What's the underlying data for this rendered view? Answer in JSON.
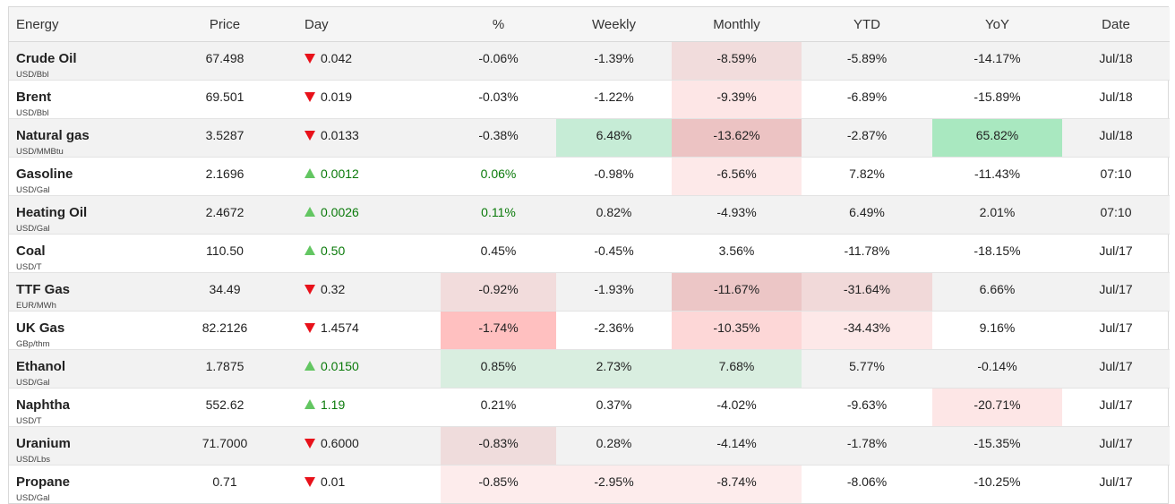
{
  "headers": {
    "energy": "Energy",
    "price": "Price",
    "day": "Day",
    "pct": "%",
    "weekly": "Weekly",
    "monthly": "Monthly",
    "ytd": "YTD",
    "yoy": "YoY",
    "date": "Date"
  },
  "colors": {
    "up_arrow": "#63c662",
    "down_arrow": "#e8111a",
    "positive_text": "#0a7a0a"
  },
  "rows": [
    {
      "name": "Crude Oil",
      "unit": "USD/Bbl",
      "price": "67.498",
      "dir": "down",
      "day": "0.042",
      "pct": "-0.06%",
      "weekly": "-1.39%",
      "monthly": "-8.59%",
      "ytd": "-5.89%",
      "yoy": "-14.17%",
      "date": "Jul/18",
      "bg": {
        "monthly": "#f1dcdc"
      }
    },
    {
      "name": "Brent",
      "unit": "USD/Bbl",
      "price": "69.501",
      "dir": "down",
      "day": "0.019",
      "pct": "-0.03%",
      "weekly": "-1.22%",
      "monthly": "-9.39%",
      "ytd": "-6.89%",
      "yoy": "-15.89%",
      "date": "Jul/18",
      "bg": {
        "monthly": "#fde6e6"
      }
    },
    {
      "name": "Natural gas",
      "unit": "USD/MMBtu",
      "price": "3.5287",
      "dir": "down",
      "day": "0.0133",
      "pct": "-0.38%",
      "weekly": "6.48%",
      "monthly": "-13.62%",
      "ytd": "-2.87%",
      "yoy": "65.82%",
      "date": "Jul/18",
      "bg": {
        "weekly": "#c6ecd6",
        "monthly": "#ecc3c3",
        "yoy": "#a9e8c0"
      }
    },
    {
      "name": "Gasoline",
      "unit": "USD/Gal",
      "price": "2.1696",
      "dir": "up",
      "day": "0.0012",
      "pct": "0.06%",
      "weekly": "-0.98%",
      "monthly": "-6.56%",
      "ytd": "7.82%",
      "yoy": "-11.43%",
      "date": "07:10",
      "bg": {
        "monthly": "#fde9e9"
      },
      "pct_pos": true
    },
    {
      "name": "Heating Oil",
      "unit": "USD/Gal",
      "price": "2.4672",
      "dir": "up",
      "day": "0.0026",
      "pct": "0.11%",
      "weekly": "0.82%",
      "monthly": "-4.93%",
      "ytd": "6.49%",
      "yoy": "2.01%",
      "date": "07:10",
      "bg": {},
      "pct_pos": true
    },
    {
      "name": "Coal",
      "unit": "USD/T",
      "price": "110.50",
      "dir": "up",
      "day": "0.50",
      "pct": "0.45%",
      "weekly": "-0.45%",
      "monthly": "3.56%",
      "ytd": "-11.78%",
      "yoy": "-18.15%",
      "date": "Jul/17",
      "bg": {}
    },
    {
      "name": "TTF Gas",
      "unit": "EUR/MWh",
      "price": "34.49",
      "dir": "down",
      "day": "0.32",
      "pct": "-0.92%",
      "weekly": "-1.93%",
      "monthly": "-11.67%",
      "ytd": "-31.64%",
      "yoy": "6.66%",
      "date": "Jul/17",
      "bg": {
        "pct": "#f2dcdc",
        "monthly": "#ecc6c6",
        "ytd": "#f1d9d9"
      }
    },
    {
      "name": "UK Gas",
      "unit": "GBp/thm",
      "price": "82.2126",
      "dir": "down",
      "day": "1.4574",
      "pct": "-1.74%",
      "weekly": "-2.36%",
      "monthly": "-10.35%",
      "ytd": "-34.43%",
      "yoy": "9.16%",
      "date": "Jul/17",
      "bg": {
        "pct": "#ffc0c0",
        "monthly": "#fdd7d7",
        "ytd": "#fde8e8"
      }
    },
    {
      "name": "Ethanol",
      "unit": "USD/Gal",
      "price": "1.7875",
      "dir": "up",
      "day": "0.0150",
      "pct": "0.85%",
      "weekly": "2.73%",
      "monthly": "7.68%",
      "ytd": "5.77%",
      "yoy": "-0.14%",
      "date": "Jul/17",
      "bg": {
        "pct": "#d9eee0",
        "weekly": "#d9eee0",
        "monthly": "#d9eee0"
      }
    },
    {
      "name": "Naphtha",
      "unit": "USD/T",
      "price": "552.62",
      "dir": "up",
      "day": "1.19",
      "pct": "0.21%",
      "weekly": "0.37%",
      "monthly": "-4.02%",
      "ytd": "-9.63%",
      "yoy": "-20.71%",
      "date": "Jul/17",
      "bg": {
        "yoy": "#fde6e6"
      }
    },
    {
      "name": "Uranium",
      "unit": "USD/Lbs",
      "price": "71.7000",
      "dir": "down",
      "day": "0.6000",
      "pct": "-0.83%",
      "weekly": "0.28%",
      "monthly": "-4.14%",
      "ytd": "-1.78%",
      "yoy": "-15.35%",
      "date": "Jul/17",
      "bg": {
        "pct": "#efdcdc"
      }
    },
    {
      "name": "Propane",
      "unit": "USD/Gal",
      "price": "0.71",
      "dir": "down",
      "day": "0.01",
      "pct": "-0.85%",
      "weekly": "-2.95%",
      "monthly": "-8.74%",
      "ytd": "-8.06%",
      "yoy": "-10.25%",
      "date": "Jul/17",
      "bg": {
        "pct": "#fdecec",
        "weekly": "#fdecec",
        "monthly": "#fdecec"
      }
    }
  ]
}
